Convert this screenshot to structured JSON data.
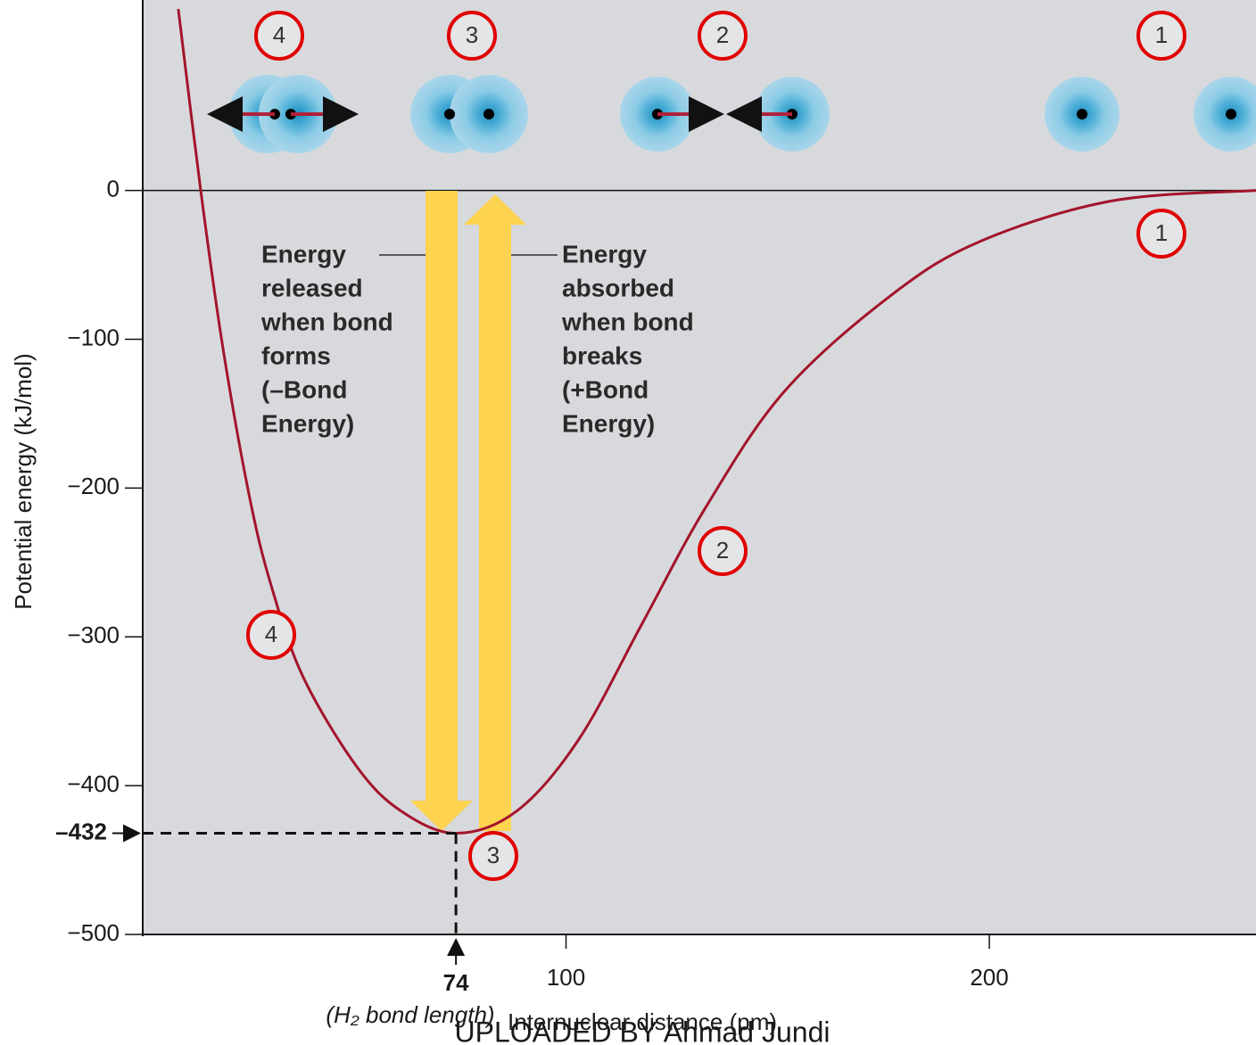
{
  "chart_data": {
    "type": "line",
    "y_label": "Potential energy (kJ/mol)",
    "x_label": "Internuclear distance (pm)",
    "watermark": "UPLOADED BY Ahmad Jundi",
    "xlim": [
      0,
      263
    ],
    "ylim": [
      -500,
      128
    ],
    "xticks": [
      100,
      200
    ],
    "yticks": [
      0,
      {
        "value": -100,
        "label": "−100"
      },
      {
        "value": -200,
        "label": "−200"
      },
      {
        "value": -300,
        "label": "−300"
      },
      {
        "value": -400,
        "label": "−400"
      },
      {
        "value": -500,
        "label": "−500"
      }
    ],
    "series": [
      {
        "color": "#a3142c",
        "x": [
          8.4,
          13.7,
          18.9,
          25.3,
          30.5,
          37.9,
          50.5,
          61,
          74,
          88.4,
          103,
          118,
          133,
          151.6,
          177,
          198,
          229,
          263
        ],
        "values": [
          122,
          0,
          -105,
          -207,
          -267,
          -327,
          -387,
          -417,
          -432,
          -417,
          -369,
          -291,
          -213,
          -135,
          -70,
          -34,
          -7,
          0
        ]
      }
    ],
    "minimum": {
      "x": 74,
      "y": -432,
      "y_label": "–432",
      "x_note": "(H₂ bond length)"
    },
    "stage_labels": [
      "1",
      "2",
      "3",
      "4"
    ],
    "released_text": [
      "Energy",
      "released",
      "when bond",
      "forms",
      "(–Bond",
      "Energy)"
    ],
    "absorbed_text": [
      "Energy",
      "absorbed",
      "when bond",
      "breaks",
      "(+Bond",
      "Energy)"
    ]
  }
}
